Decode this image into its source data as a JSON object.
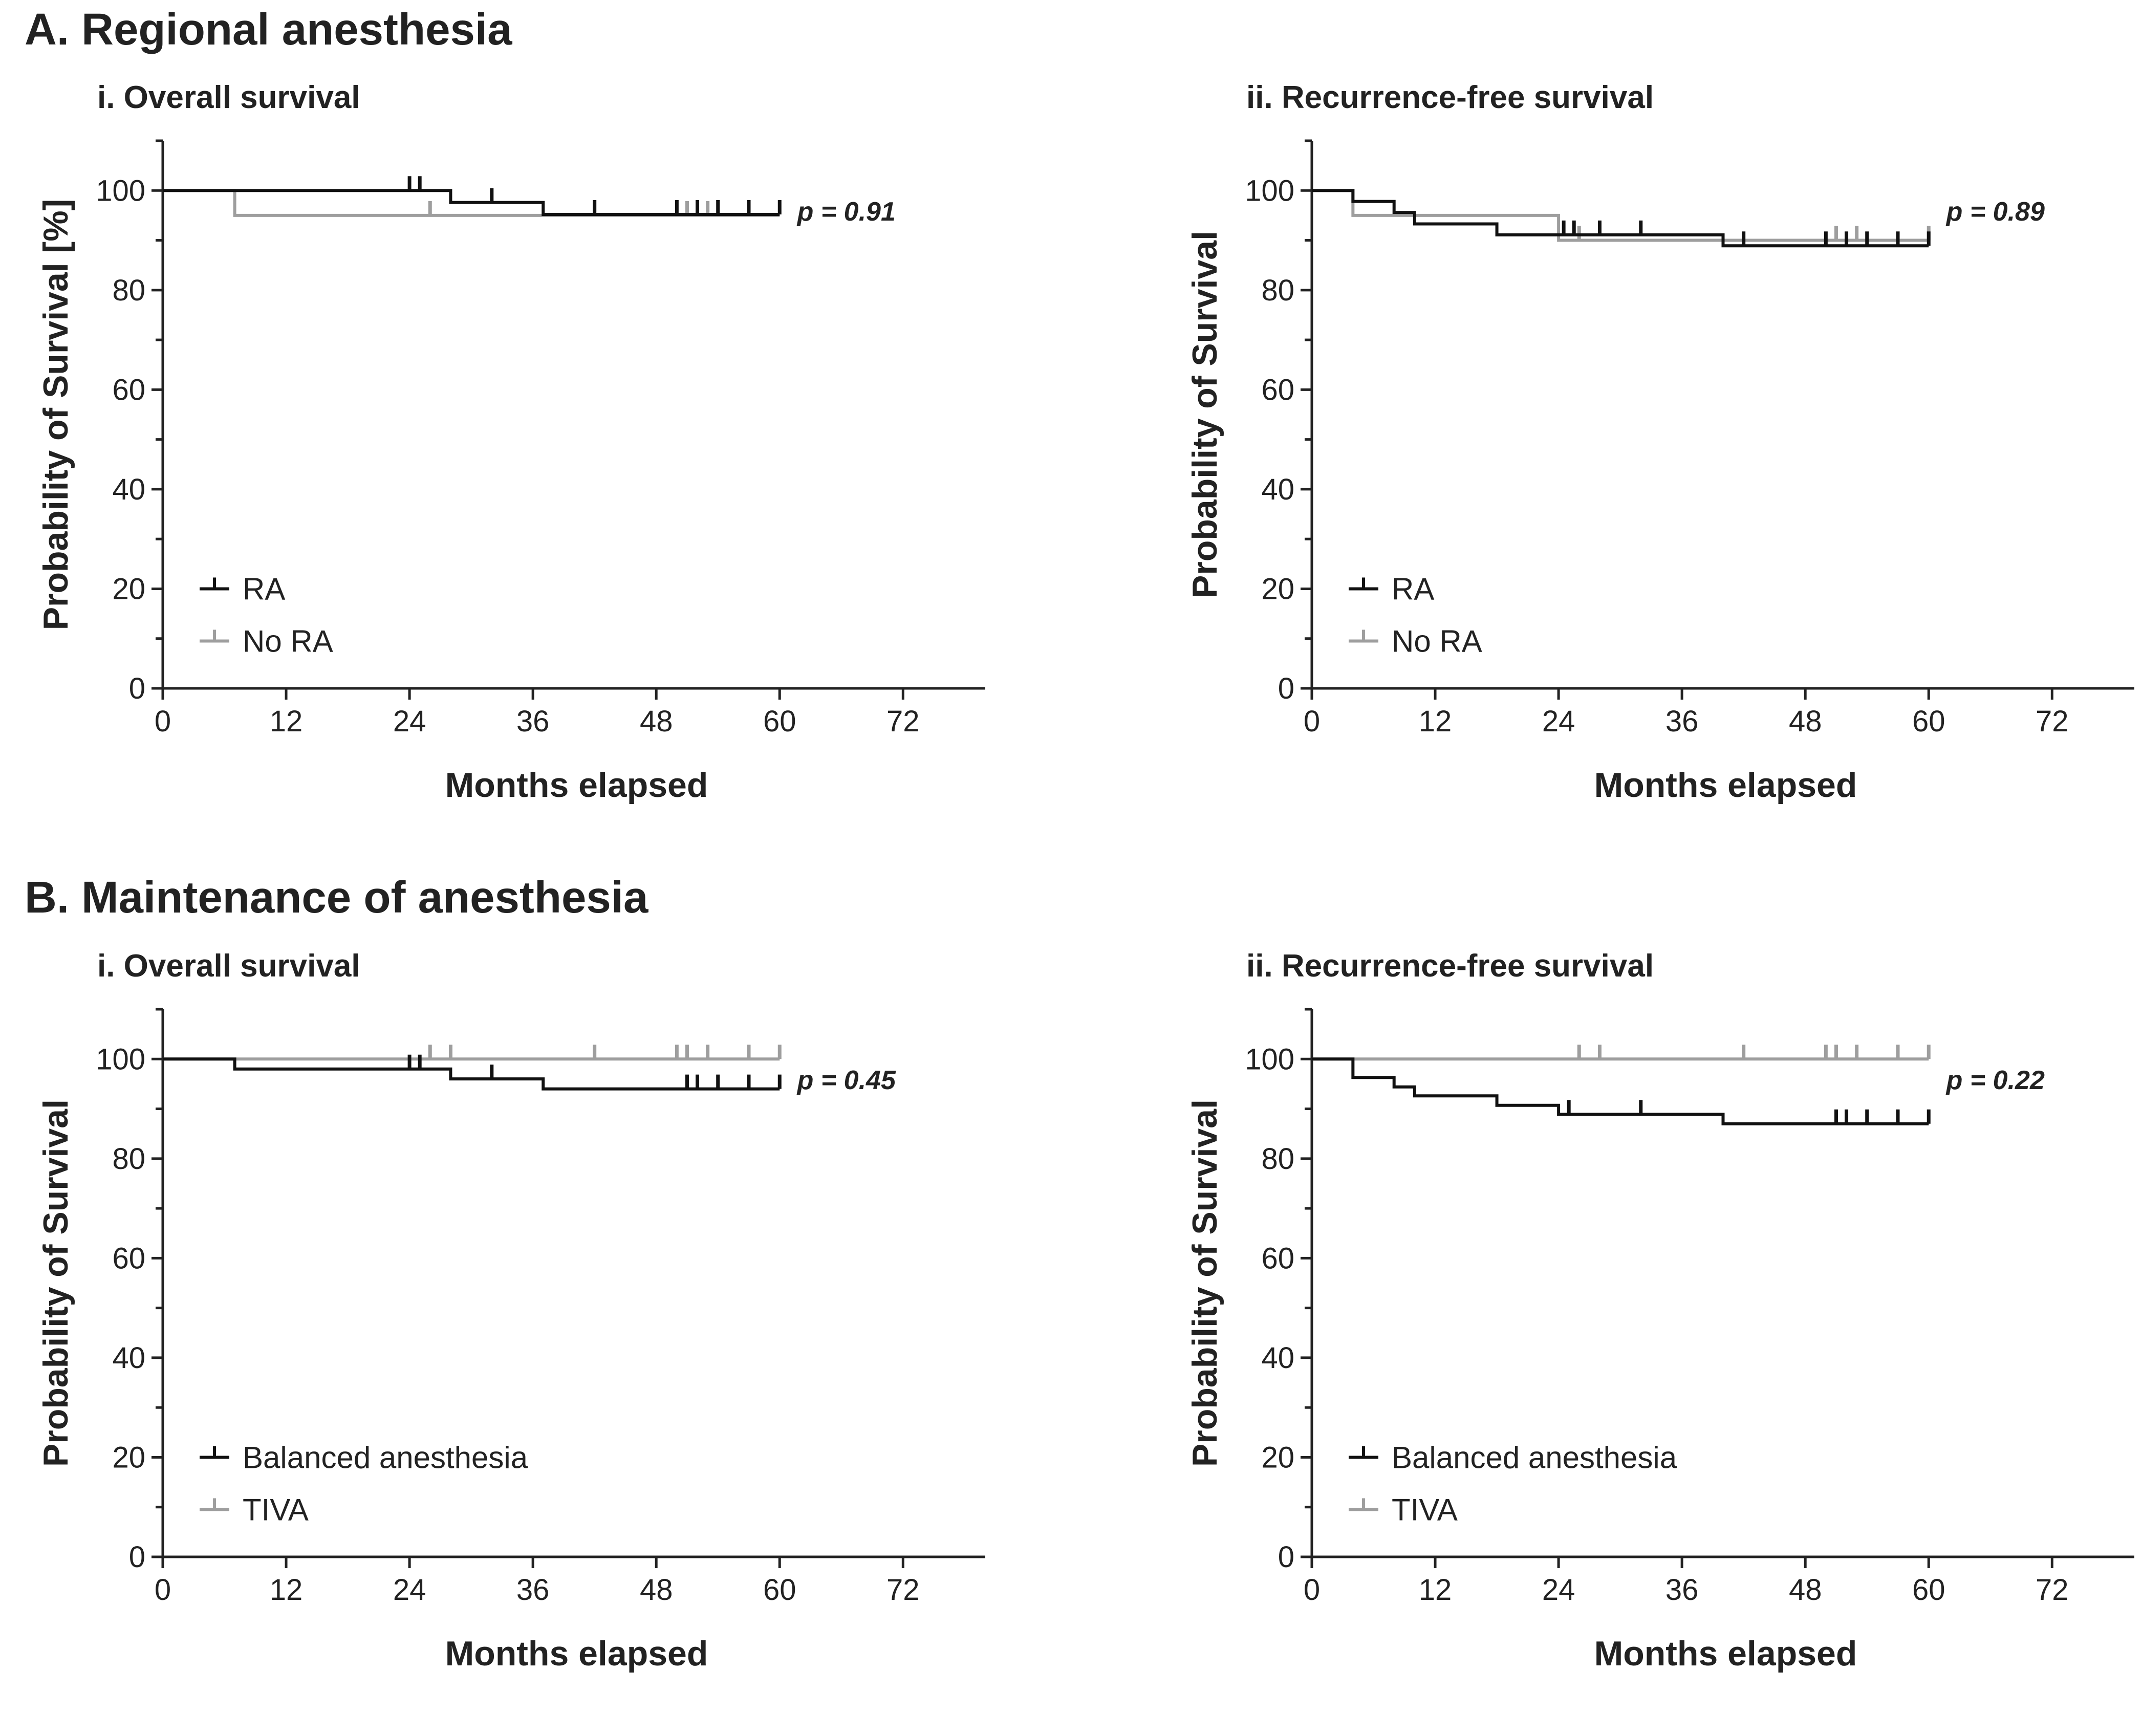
{
  "sections": [
    {
      "title": "A. Regional anesthesia"
    },
    {
      "title": "B. Maintenance of anesthesia"
    }
  ],
  "colors": {
    "black_series": "#111111",
    "gray_series": "#9e9e9e",
    "axis": "#222222"
  },
  "chart_data": [
    {
      "type": "line",
      "title": "i. Overall survival",
      "xlabel": "Months elapsed",
      "ylabel": "Probability of Survival [%]",
      "xlim": [
        0,
        80
      ],
      "ylim": [
        0,
        110
      ],
      "xticks": [
        0,
        12,
        24,
        36,
        48,
        60,
        72
      ],
      "yticks": [
        0,
        20,
        40,
        60,
        80,
        100
      ],
      "legend_position": "bottom-left",
      "p_value": "p = 0.91",
      "series": [
        {
          "name": "RA",
          "color": "#111111",
          "steps": [
            [
              0,
              100
            ],
            [
              28,
              97.6
            ],
            [
              37,
              95.2
            ],
            [
              60,
              95.2
            ]
          ],
          "censors": [
            [
              24,
              100
            ],
            [
              25,
              100
            ],
            [
              32,
              97.6
            ],
            [
              42,
              95.2
            ],
            [
              50,
              95.2
            ],
            [
              52,
              95.2
            ],
            [
              54,
              95.2
            ],
            [
              57,
              95.2
            ],
            [
              60,
              95.2
            ]
          ]
        },
        {
          "name": "No RA",
          "color": "#9e9e9e",
          "steps": [
            [
              0,
              100
            ],
            [
              7,
              95
            ],
            [
              60,
              95
            ]
          ],
          "censors": [
            [
              26,
              95
            ],
            [
              51,
              95
            ],
            [
              53,
              95
            ]
          ]
        }
      ]
    },
    {
      "type": "line",
      "title": "ii. Recurrence-free survival",
      "xlabel": "Months elapsed",
      "ylabel": "Probability of Survival",
      "xlim": [
        0,
        80
      ],
      "ylim": [
        0,
        110
      ],
      "xticks": [
        0,
        12,
        24,
        36,
        48,
        60,
        72
      ],
      "yticks": [
        0,
        20,
        40,
        60,
        80,
        100
      ],
      "legend_position": "bottom-left",
      "p_value": "p = 0.89",
      "series": [
        {
          "name": "RA",
          "color": "#111111",
          "steps": [
            [
              0,
              100
            ],
            [
              4,
              97.8
            ],
            [
              8,
              95.6
            ],
            [
              10,
              93.3
            ],
            [
              18,
              91.1
            ],
            [
              40,
              88.9
            ],
            [
              60,
              88.9
            ]
          ],
          "censors": [
            [
              24.5,
              91.1
            ],
            [
              25.5,
              91.1
            ],
            [
              28,
              91.1
            ],
            [
              32,
              91.1
            ],
            [
              42,
              88.9
            ],
            [
              50,
              88.9
            ],
            [
              52,
              88.9
            ],
            [
              54,
              88.9
            ],
            [
              57,
              88.9
            ],
            [
              60,
              88.9
            ]
          ]
        },
        {
          "name": "No RA",
          "color": "#9e9e9e",
          "steps": [
            [
              0,
              100
            ],
            [
              4,
              95
            ],
            [
              24,
              90
            ],
            [
              60,
              90
            ]
          ],
          "censors": [
            [
              26,
              90
            ],
            [
              51,
              90
            ],
            [
              53,
              90
            ],
            [
              60,
              90
            ]
          ]
        }
      ]
    },
    {
      "type": "line",
      "title": "i. Overall survival",
      "xlabel": "Months elapsed",
      "ylabel": "Probability of Survival",
      "xlim": [
        0,
        80
      ],
      "ylim": [
        0,
        110
      ],
      "xticks": [
        0,
        12,
        24,
        36,
        48,
        60,
        72
      ],
      "yticks": [
        0,
        20,
        40,
        60,
        80,
        100
      ],
      "legend_position": "bottom-left",
      "p_value": "p = 0.45",
      "series": [
        {
          "name": "Balanced anesthesia",
          "color": "#111111",
          "steps": [
            [
              0,
              100
            ],
            [
              7,
              98
            ],
            [
              28,
              96
            ],
            [
              37,
              94
            ],
            [
              60,
              94
            ]
          ],
          "censors": [
            [
              24,
              98
            ],
            [
              25,
              98
            ],
            [
              32,
              96
            ],
            [
              51,
              94
            ],
            [
              52,
              94
            ],
            [
              54,
              94
            ],
            [
              57,
              94
            ],
            [
              60,
              94
            ]
          ]
        },
        {
          "name": "TIVA",
          "color": "#9e9e9e",
          "steps": [
            [
              0,
              100
            ],
            [
              60,
              100
            ]
          ],
          "censors": [
            [
              26,
              100
            ],
            [
              28,
              100
            ],
            [
              42,
              100
            ],
            [
              50,
              100
            ],
            [
              51,
              100
            ],
            [
              53,
              100
            ],
            [
              57,
              100
            ],
            [
              60,
              100
            ]
          ]
        }
      ]
    },
    {
      "type": "line",
      "title": "ii. Recurrence-free survival",
      "xlabel": "Months elapsed",
      "ylabel": "Probability of Survival",
      "xlim": [
        0,
        80
      ],
      "ylim": [
        0,
        110
      ],
      "xticks": [
        0,
        12,
        24,
        36,
        48,
        60,
        72
      ],
      "yticks": [
        0,
        20,
        40,
        60,
        80,
        100
      ],
      "legend_position": "bottom-left",
      "p_value": "p = 0.22",
      "series": [
        {
          "name": "Balanced anesthesia",
          "color": "#111111",
          "steps": [
            [
              0,
              100
            ],
            [
              4,
              96.3
            ],
            [
              8,
              94.4
            ],
            [
              10,
              92.6
            ],
            [
              18,
              90.7
            ],
            [
              24,
              88.9
            ],
            [
              40,
              87
            ],
            [
              60,
              87
            ]
          ],
          "censors": [
            [
              25,
              88.9
            ],
            [
              32,
              88.9
            ],
            [
              51,
              87
            ],
            [
              52,
              87
            ],
            [
              54,
              87
            ],
            [
              57,
              87
            ],
            [
              60,
              87
            ]
          ]
        },
        {
          "name": "TIVA",
          "color": "#9e9e9e",
          "steps": [
            [
              0,
              100
            ],
            [
              60,
              100
            ]
          ],
          "censors": [
            [
              26,
              100
            ],
            [
              28,
              100
            ],
            [
              42,
              100
            ],
            [
              50,
              100
            ],
            [
              51,
              100
            ],
            [
              53,
              100
            ],
            [
              57,
              100
            ],
            [
              60,
              100
            ]
          ]
        }
      ]
    }
  ]
}
